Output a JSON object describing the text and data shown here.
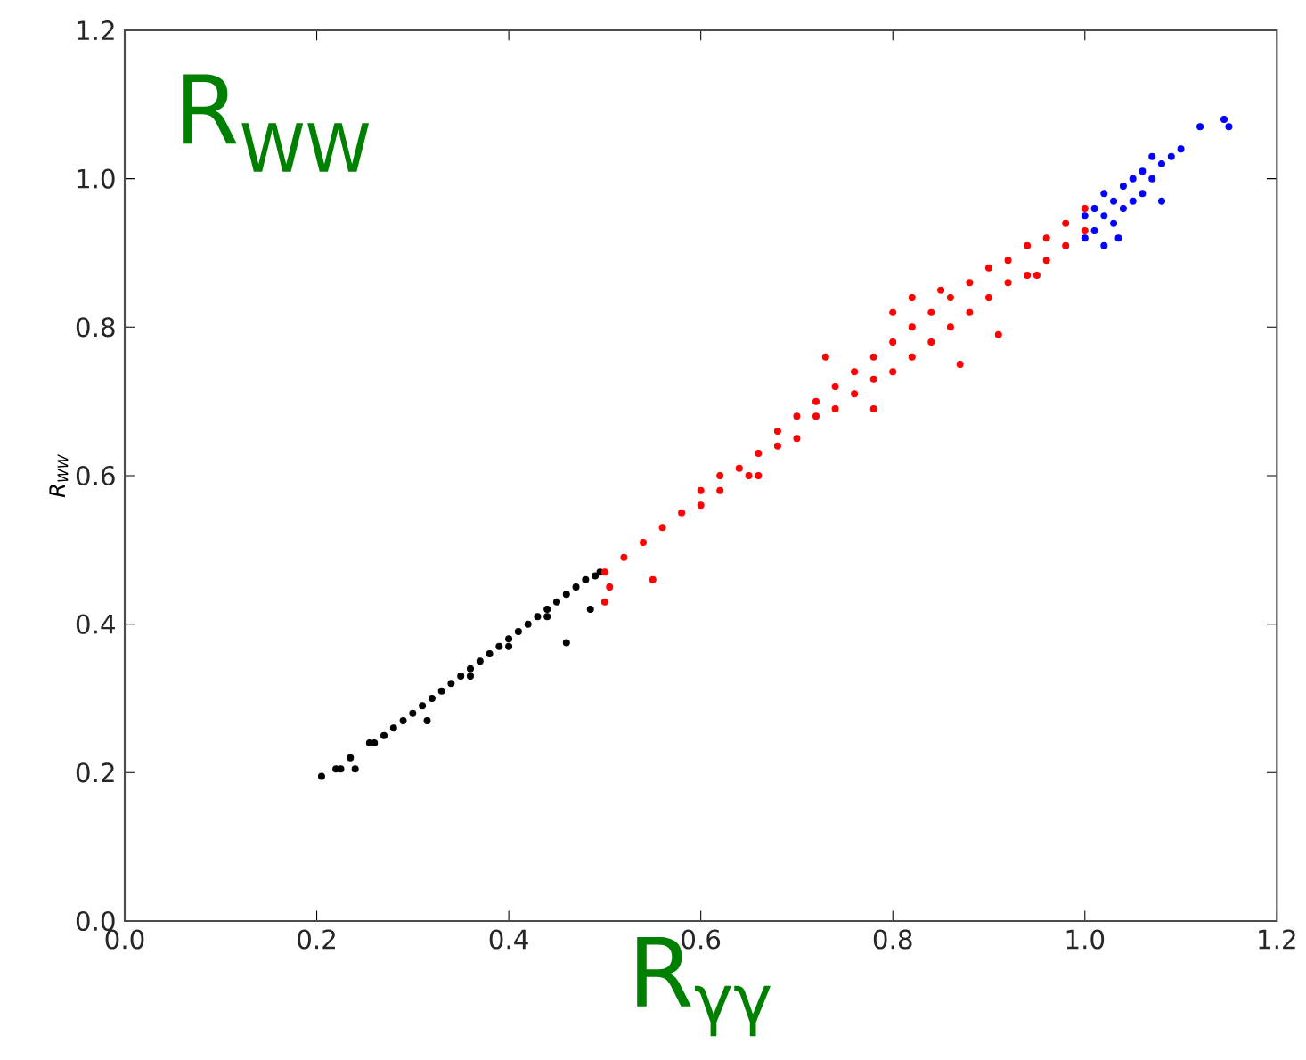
{
  "chart_data": {
    "type": "scatter",
    "xlabel": "R$_{γγ}$",
    "ylabel": "R$_{WW}$",
    "annotations": [
      "R$_{WW}$"
    ],
    "xlim": [
      0,
      1.2
    ],
    "ylim": [
      0,
      1.2
    ],
    "xticks": [
      {
        "value": 0,
        "label": "0.0"
      },
      0.2,
      0.4,
      0.6,
      0.8,
      {
        "value": 1,
        "label": "1.0"
      },
      1.2
    ],
    "yticks": [
      {
        "value": 0,
        "label": "0.0"
      },
      0.2,
      0.4,
      0.6,
      0.8,
      {
        "value": 1,
        "label": "1.0"
      },
      1.2
    ],
    "grid": false,
    "series": [
      {
        "color": "#000000",
        "x": [
          0.205,
          0.22,
          0.225,
          0.235,
          0.24,
          0.255,
          0.26,
          0.27,
          0.28,
          0.29,
          0.3,
          0.31,
          0.315,
          0.32,
          0.33,
          0.34,
          0.35,
          0.36,
          0.37,
          0.38,
          0.39,
          0.4,
          0.41,
          0.42,
          0.43,
          0.44,
          0.45,
          0.46,
          0.46,
          0.47,
          0.48,
          0.49,
          0.495,
          0.485,
          0.4,
          0.44,
          0.36
        ],
        "values": [
          0.195,
          0.205,
          0.205,
          0.22,
          0.205,
          0.24,
          0.24,
          0.25,
          0.26,
          0.27,
          0.28,
          0.29,
          0.27,
          0.3,
          0.31,
          0.32,
          0.33,
          0.34,
          0.35,
          0.36,
          0.37,
          0.38,
          0.39,
          0.4,
          0.41,
          0.42,
          0.43,
          0.375,
          0.44,
          0.45,
          0.46,
          0.465,
          0.47,
          0.42,
          0.37,
          0.41,
          0.33
        ]
      },
      {
        "color": "#ff0000",
        "x": [
          0.5,
          0.5,
          0.505,
          0.52,
          0.54,
          0.55,
          0.56,
          0.58,
          0.6,
          0.6,
          0.62,
          0.62,
          0.64,
          0.65,
          0.66,
          0.68,
          0.68,
          0.7,
          0.7,
          0.72,
          0.72,
          0.74,
          0.74,
          0.76,
          0.76,
          0.78,
          0.78,
          0.8,
          0.8,
          0.8,
          0.82,
          0.82,
          0.82,
          0.84,
          0.84,
          0.85,
          0.86,
          0.86,
          0.87,
          0.88,
          0.88,
          0.9,
          0.9,
          0.91,
          0.92,
          0.92,
          0.94,
          0.94,
          0.96,
          0.96,
          0.98,
          0.98,
          1.0,
          1.0,
          0.73,
          0.66,
          0.95,
          0.78
        ],
        "values": [
          0.47,
          0.43,
          0.45,
          0.49,
          0.51,
          0.46,
          0.53,
          0.55,
          0.56,
          0.58,
          0.58,
          0.6,
          0.61,
          0.6,
          0.63,
          0.64,
          0.66,
          0.65,
          0.68,
          0.68,
          0.7,
          0.69,
          0.72,
          0.71,
          0.74,
          0.73,
          0.76,
          0.74,
          0.78,
          0.82,
          0.76,
          0.8,
          0.84,
          0.78,
          0.82,
          0.85,
          0.8,
          0.84,
          0.75,
          0.82,
          0.86,
          0.84,
          0.88,
          0.79,
          0.86,
          0.89,
          0.87,
          0.91,
          0.89,
          0.92,
          0.91,
          0.94,
          0.93,
          0.96,
          0.76,
          0.6,
          0.87,
          0.69
        ]
      },
      {
        "color": "#0000ff",
        "x": [
          1.0,
          1.0,
          1.01,
          1.01,
          1.02,
          1.02,
          1.02,
          1.03,
          1.03,
          1.04,
          1.04,
          1.05,
          1.05,
          1.06,
          1.06,
          1.07,
          1.07,
          1.08,
          1.08,
          1.09,
          1.1,
          1.12,
          1.145,
          1.15,
          1.035
        ],
        "values": [
          0.92,
          0.95,
          0.93,
          0.96,
          0.91,
          0.95,
          0.98,
          0.94,
          0.97,
          0.96,
          0.99,
          0.97,
          1.0,
          0.98,
          1.01,
          1.0,
          1.03,
          1.02,
          0.97,
          1.03,
          1.04,
          1.07,
          1.08,
          1.07,
          0.92
        ]
      }
    ]
  }
}
